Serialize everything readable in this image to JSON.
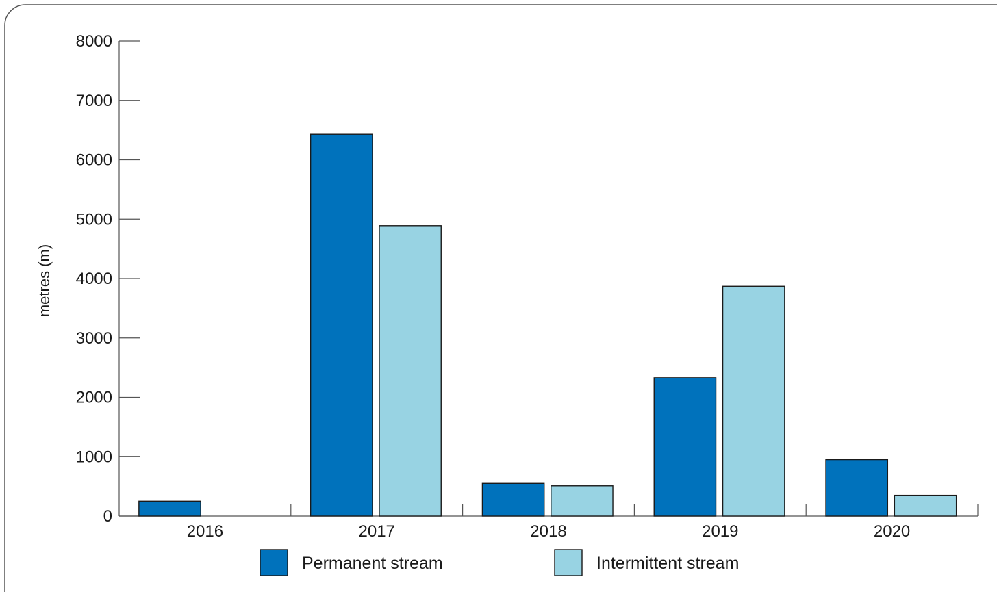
{
  "chart_data": {
    "type": "bar",
    "categories": [
      "2016",
      "2017",
      "2018",
      "2019",
      "2020"
    ],
    "series": [
      {
        "name": "Permanent stream",
        "values": [
          250,
          6430,
          550,
          2330,
          950
        ],
        "color": "#0072bc"
      },
      {
        "name": "Intermittent stream",
        "values": [
          0,
          4890,
          510,
          3870,
          350
        ],
        "color": "#98d3e3"
      }
    ],
    "title": "",
    "xlabel": "",
    "ylabel": "metres (m)",
    "ylim": [
      0,
      8000
    ],
    "yticks": [
      "0",
      "1000",
      "2000",
      "3000",
      "4000",
      "5000",
      "6000",
      "7000",
      "8000"
    ],
    "grid": false,
    "legend_position": "bottom-center"
  }
}
